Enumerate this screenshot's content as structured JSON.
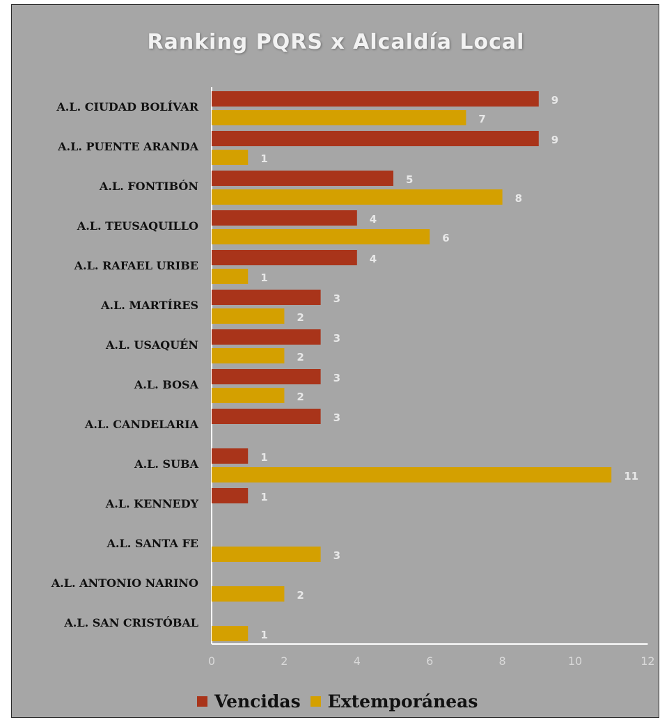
{
  "chart_data": {
    "type": "bar",
    "orientation": "horizontal",
    "title": "Ranking PQRS x Alcaldía Local",
    "categories": [
      "A.L. CIUDAD BOLÍVAR",
      "A.L. PUENTE ARANDA",
      "A.L. FONTIBÓN",
      "A.L. TEUSAQUILLO",
      "A.L. RAFAEL URIBE",
      "A.L. MARTÍRES",
      "A.L. USAQUÉN",
      "A.L. BOSA",
      "A.L. CANDELARIA",
      "A.L. SUBA",
      "A.L.  KENNEDY",
      "A.L. SANTA FE",
      "A.L. ANTONIO NARINO",
      "A.L. SAN CRISTÓBAL"
    ],
    "series": [
      {
        "name": "Vencidas",
        "color": "#a9341a",
        "values": [
          9,
          9,
          5,
          4,
          4,
          3,
          3,
          3,
          3,
          1,
          1,
          null,
          null,
          null
        ]
      },
      {
        "name": "Extemporáneas",
        "color": "#d4a000",
        "values": [
          7,
          1,
          8,
          6,
          1,
          2,
          2,
          2,
          null,
          11,
          null,
          3,
          2,
          1
        ]
      }
    ],
    "xlim": [
      0,
      12
    ],
    "xticks": [
      "0",
      "2",
      "4",
      "6",
      "8",
      "10",
      "12"
    ],
    "legend_position": "bottom",
    "grid": false
  }
}
